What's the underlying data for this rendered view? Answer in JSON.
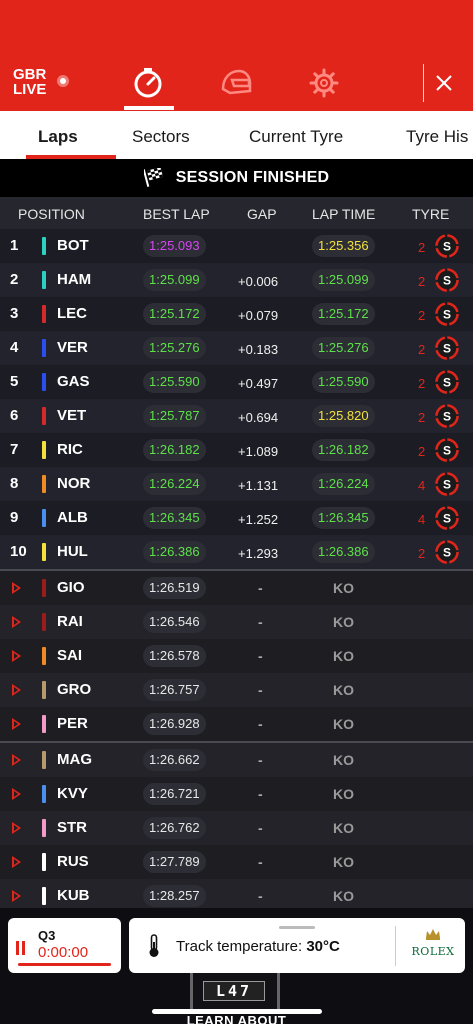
{
  "header": {
    "brand_line1": "GBR",
    "brand_line2": "LIVE",
    "brand_color": "#e1251b",
    "nav_icons": [
      "stopwatch-icon",
      "helmet-icon",
      "gear-icon"
    ],
    "active_nav": "stopwatch-icon"
  },
  "tabs": [
    "Laps",
    "Sectors",
    "Current Tyre",
    "Tyre His"
  ],
  "active_tab": "Laps",
  "session_banner": "SESSION FINISHED",
  "columns": {
    "position": "POSITION",
    "best_lap": "BEST LAP",
    "gap": "GAP",
    "lap_time": "LAP TIME",
    "tyre": "TYRE"
  },
  "rows": [
    {
      "pos": "1",
      "driver": "BOT",
      "team_color": "#2dd1c0",
      "best": "1:25.093",
      "best_color": "purple",
      "gap": "",
      "lap": "1:25.356",
      "lap_color": "yellow",
      "laps": "2",
      "tyre": "S"
    },
    {
      "pos": "2",
      "driver": "HAM",
      "team_color": "#2dd1c0",
      "best": "1:25.099",
      "best_color": "green",
      "gap": "+0.006",
      "lap": "1:25.099",
      "lap_color": "green",
      "laps": "2",
      "tyre": "S"
    },
    {
      "pos": "3",
      "driver": "LEC",
      "team_color": "#d42a2a",
      "best": "1:25.172",
      "best_color": "green",
      "gap": "+0.079",
      "lap": "1:25.172",
      "lap_color": "green",
      "laps": "2",
      "tyre": "S"
    },
    {
      "pos": "4",
      "driver": "VER",
      "team_color": "#2a4ef0",
      "best": "1:25.276",
      "best_color": "green",
      "gap": "+0.183",
      "lap": "1:25.276",
      "lap_color": "green",
      "laps": "2",
      "tyre": "S"
    },
    {
      "pos": "5",
      "driver": "GAS",
      "team_color": "#2a4ef0",
      "best": "1:25.590",
      "best_color": "green",
      "gap": "+0.497",
      "lap": "1:25.590",
      "lap_color": "green",
      "laps": "2",
      "tyre": "S"
    },
    {
      "pos": "6",
      "driver": "VET",
      "team_color": "#d42a2a",
      "best": "1:25.787",
      "best_color": "green",
      "gap": "+0.694",
      "lap": "1:25.820",
      "lap_color": "yellow",
      "laps": "2",
      "tyre": "S"
    },
    {
      "pos": "7",
      "driver": "RIC",
      "team_color": "#f3e03c",
      "best": "1:26.182",
      "best_color": "green",
      "gap": "+1.089",
      "lap": "1:26.182",
      "lap_color": "green",
      "laps": "2",
      "tyre": "S"
    },
    {
      "pos": "8",
      "driver": "NOR",
      "team_color": "#f08a24",
      "best": "1:26.224",
      "best_color": "green",
      "gap": "+1.131",
      "lap": "1:26.224",
      "lap_color": "green",
      "laps": "4",
      "tyre": "S"
    },
    {
      "pos": "9",
      "driver": "ALB",
      "team_color": "#4a8ef0",
      "best": "1:26.345",
      "best_color": "green",
      "gap": "+1.252",
      "lap": "1:26.345",
      "lap_color": "green",
      "laps": "4",
      "tyre": "S"
    },
    {
      "pos": "10",
      "driver": "HUL",
      "team_color": "#f3e03c",
      "best": "1:26.386",
      "best_color": "green",
      "gap": "+1.293",
      "lap": "1:26.386",
      "lap_color": "green",
      "laps": "2",
      "tyre": "S"
    }
  ],
  "eliminated_groups": [
    [
      {
        "driver": "GIO",
        "team_color": "#9b1c1c",
        "best": "1:26.519",
        "gap": "-",
        "status": "KO"
      },
      {
        "driver": "RAI",
        "team_color": "#9b1c1c",
        "best": "1:26.546",
        "gap": "-",
        "status": "KO"
      },
      {
        "driver": "SAI",
        "team_color": "#f08a24",
        "best": "1:26.578",
        "gap": "-",
        "status": "KO"
      },
      {
        "driver": "GRO",
        "team_color": "#b59a6a",
        "best": "1:26.757",
        "gap": "-",
        "status": "KO"
      },
      {
        "driver": "PER",
        "team_color": "#f39ac8",
        "best": "1:26.928",
        "gap": "-",
        "status": "KO"
      }
    ],
    [
      {
        "driver": "MAG",
        "team_color": "#b59a6a",
        "best": "1:26.662",
        "gap": "-",
        "status": "KO"
      },
      {
        "driver": "KVY",
        "team_color": "#4a8ef0",
        "best": "1:26.721",
        "gap": "-",
        "status": "KO"
      },
      {
        "driver": "STR",
        "team_color": "#f39ac8",
        "best": "1:26.762",
        "gap": "-",
        "status": "KO"
      },
      {
        "driver": "RUS",
        "team_color": "#ffffff",
        "best": "1:27.789",
        "gap": "-",
        "status": "KO"
      },
      {
        "driver": "KUB",
        "team_color": "#ffffff",
        "best": "1:28.257",
        "gap": "-",
        "status": "KO"
      }
    ]
  ],
  "colors": {
    "purple": "#d447ef",
    "green": "#5ee04a",
    "yellow": "#f3e03c",
    "white": "#e8e8e8",
    "soft_tyre": "#e1251b"
  },
  "session_card": {
    "session": "Q3",
    "clock": "0:00:00"
  },
  "weather_card": {
    "label": "Track temperature: ",
    "value": "30°C",
    "sponsor": "ROLEX"
  },
  "board_text": "L47",
  "learn_text": "LEARN ABOUT"
}
